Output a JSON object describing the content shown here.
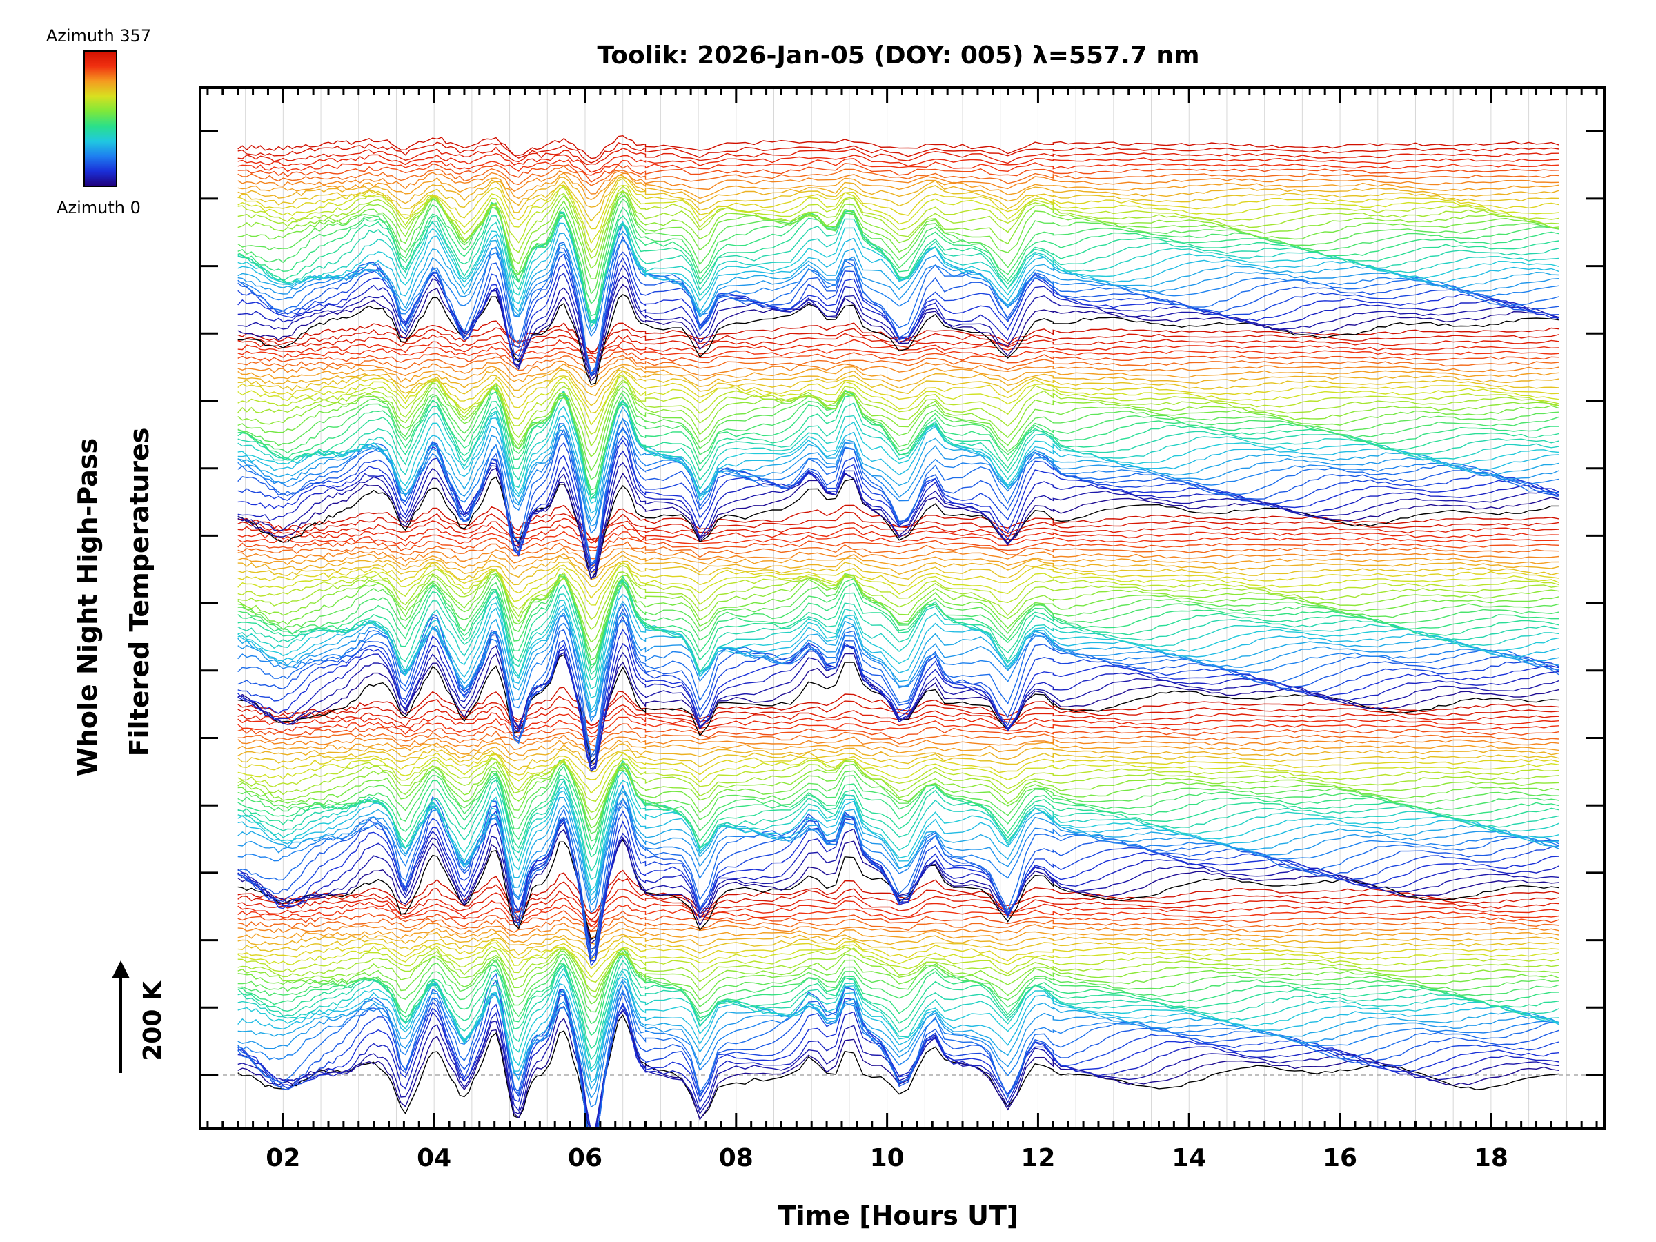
{
  "chart_data": {
    "type": "line",
    "title": "Toolik: 2026-Jan-05 (DOY: 005) λ=557.7 nm",
    "xlabel": "Time [Hours UT]",
    "ylabel_line1": "Whole Night High-Pass",
    "ylabel_line2": "Filtered Temperatures",
    "scale_label": "200 K",
    "xlim": [
      0.9,
      19.5
    ],
    "x_ticks": [
      2,
      4,
      6,
      8,
      10,
      12,
      14,
      16,
      18
    ],
    "x_tick_labels": [
      "02",
      "04",
      "06",
      "08",
      "10",
      "12",
      "14",
      "16",
      "18"
    ],
    "grid": true,
    "series_count": 180,
    "series_spacing_K": 20,
    "scale_bar_K": 200,
    "x_start": 1.4,
    "x_end": 19.0,
    "colorbar": {
      "label_top": "Azimuth 357",
      "label_bottom": "Azimuth 0",
      "min": 0,
      "max": 357,
      "colormap": "rainbow"
    },
    "colors": {
      "colormap_stops": [
        "#20007a",
        "#1a2fd8",
        "#1e7ef0",
        "#20c8e0",
        "#2ae08a",
        "#7fe83a",
        "#d8e020",
        "#f59a20",
        "#f03010",
        "#d01000"
      ],
      "grid": "#d8d8d8",
      "axis": "#000000",
      "baseline": "#aaaaaa"
    }
  }
}
